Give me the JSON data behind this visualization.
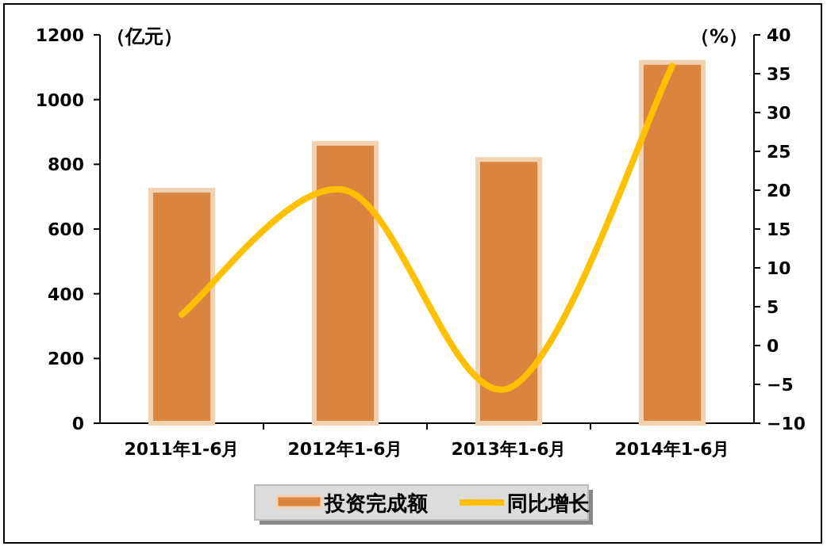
{
  "chart_data": {
    "type": "bar",
    "categories": [
      "2011年1-6月",
      "2012年1-6月",
      "2013年1-6月",
      "2014年1-6月"
    ],
    "ylabel": "（亿元）",
    "y2label": "（%）",
    "ylim": [
      0,
      1200
    ],
    "yticks": [
      0,
      200,
      400,
      600,
      800,
      1000,
      1200
    ],
    "y2lim": [
      -10,
      40
    ],
    "y2ticks": [
      -10,
      -5,
      0,
      5,
      10,
      15,
      20,
      25,
      30,
      35,
      40
    ],
    "grid": false,
    "legend": "bottom",
    "series": [
      {
        "name": "投资完成额",
        "color": "#d9843f",
        "values": [
          715,
          860,
          810,
          1110
        ]
      },
      {
        "name": "同比增长",
        "type": "line",
        "axis": "y2",
        "color": "#ffc000",
        "line_style": "solid",
        "marker": "none",
        "values": [
          4,
          20,
          -5.5,
          36
        ]
      }
    ]
  }
}
